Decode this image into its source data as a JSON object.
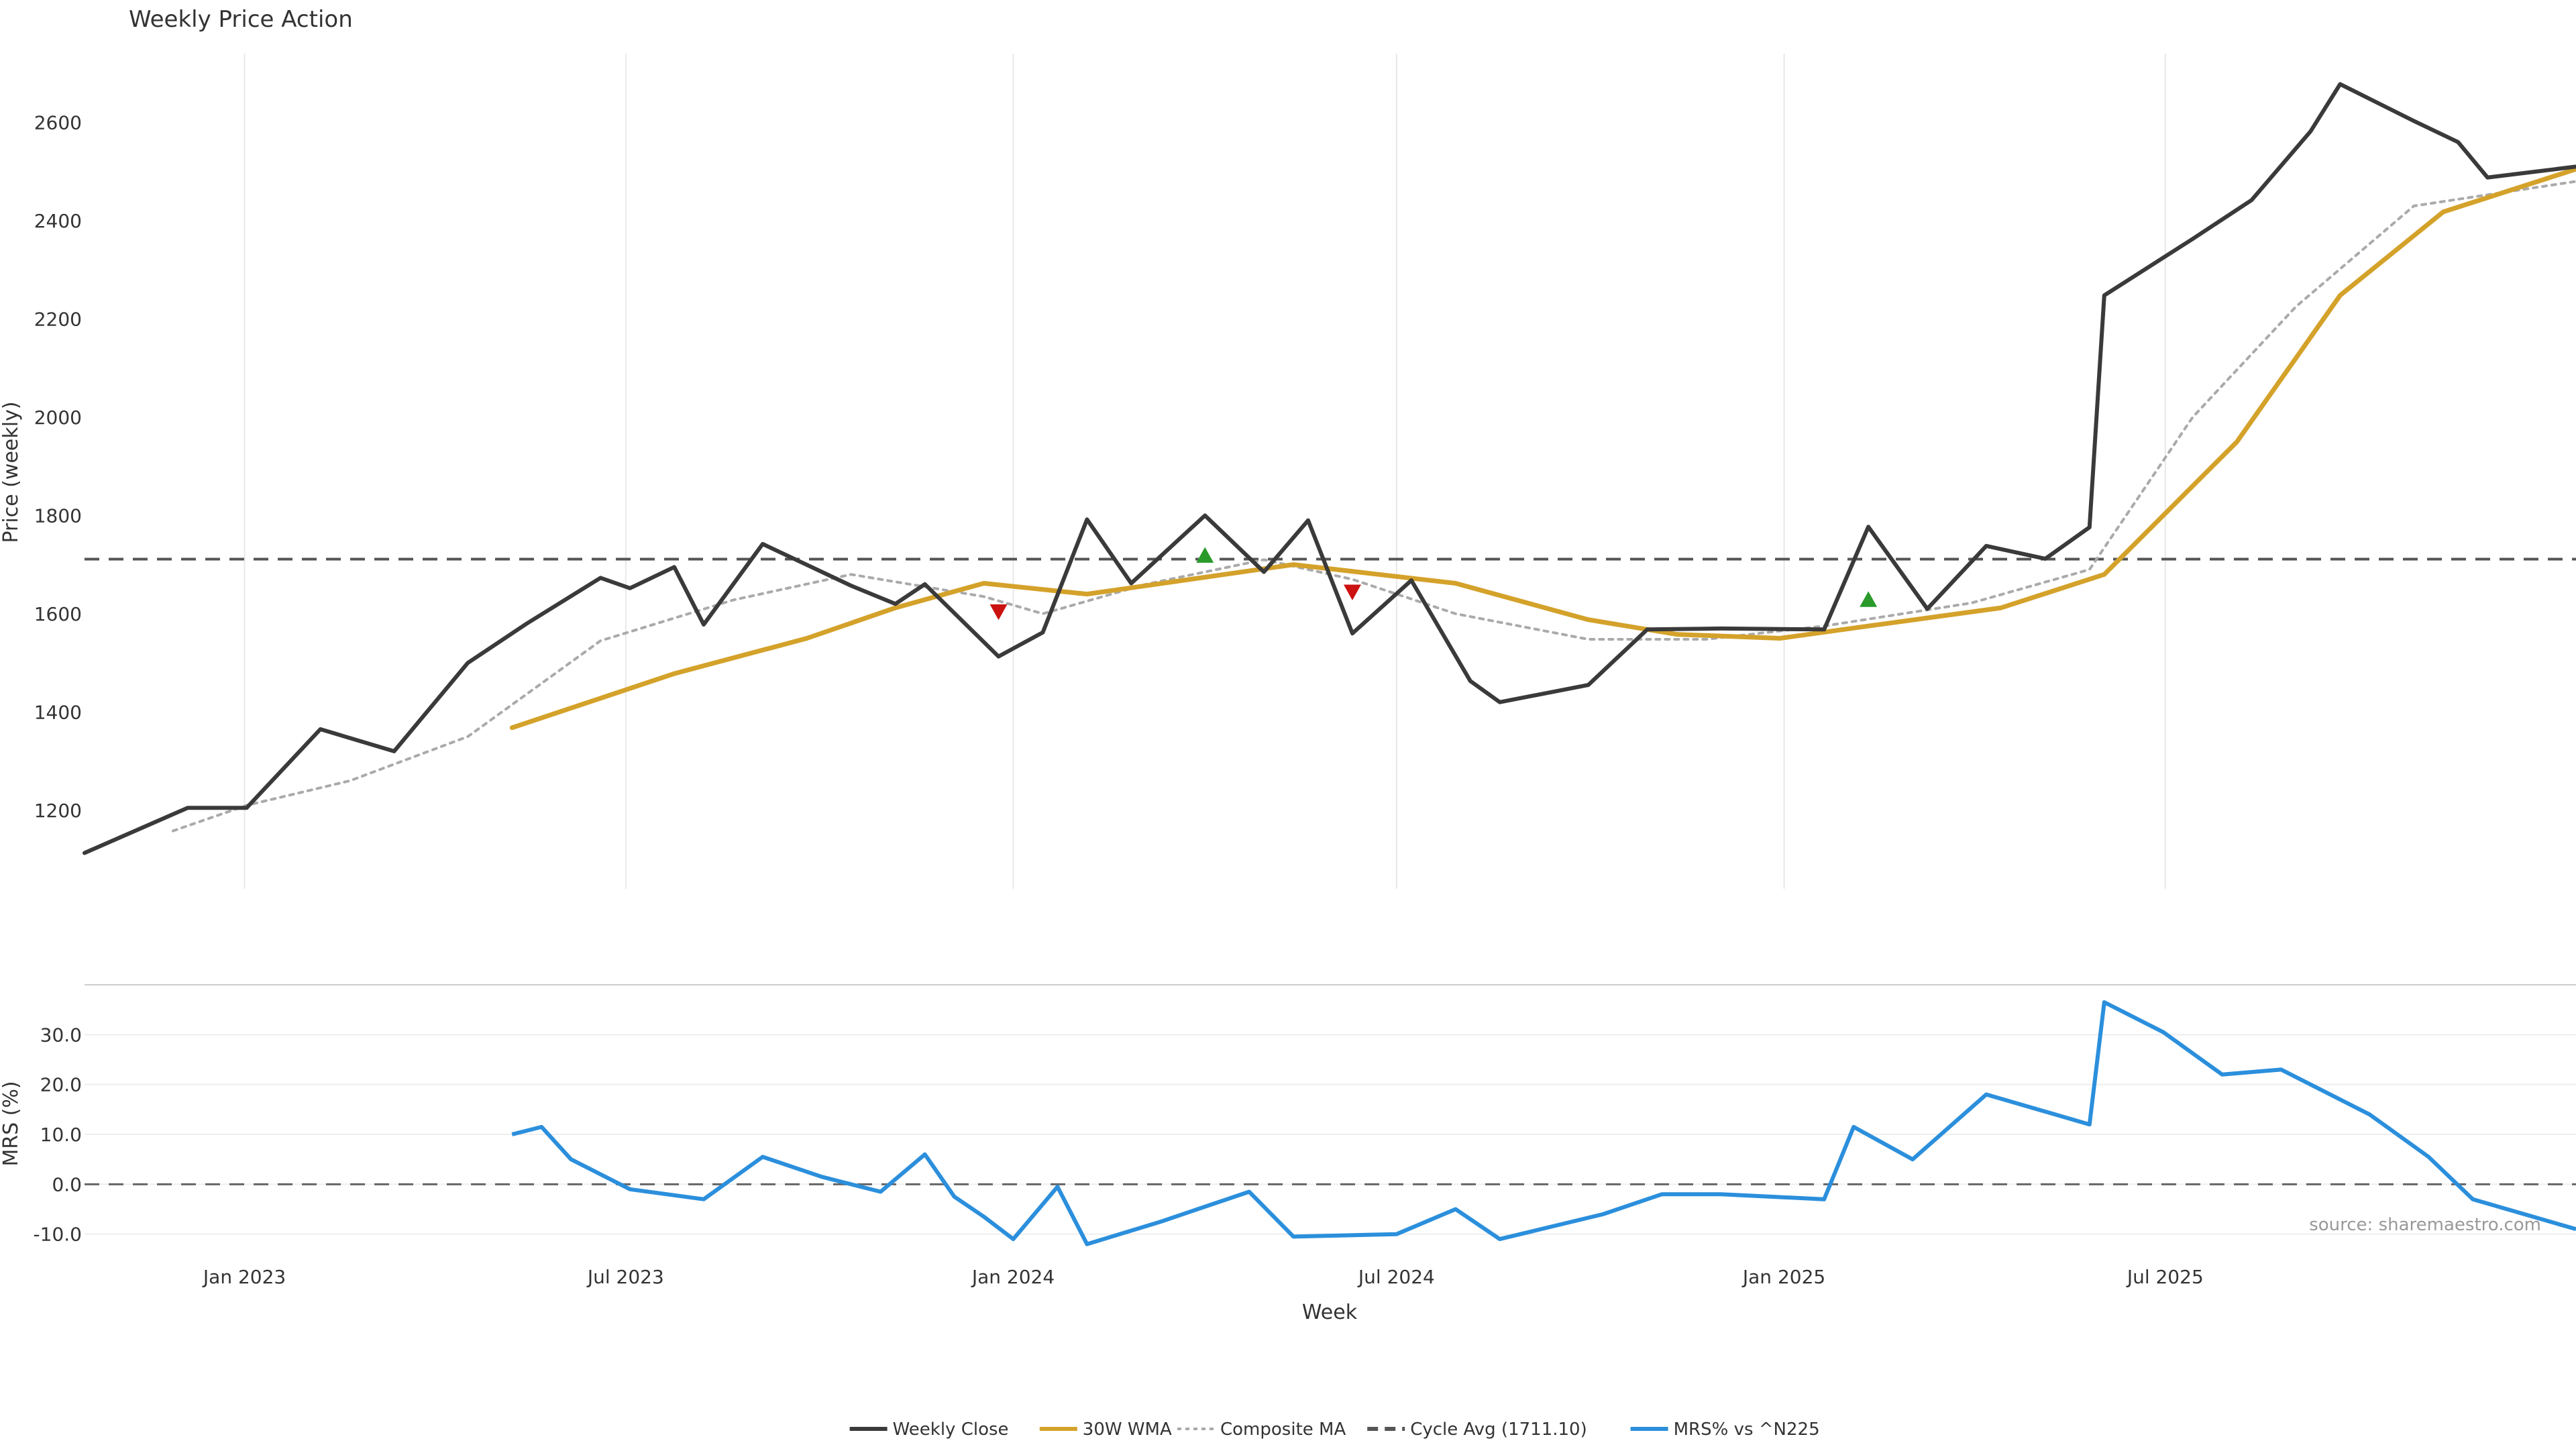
{
  "chart_data": {
    "type": "line",
    "title": "Weekly Price Action",
    "x_axis_label": "Week",
    "x_tick_labels": [
      "Jan 2023",
      "Jul 2023",
      "Jan 2024",
      "Jul 2024",
      "Jan 2025",
      "Jul 2025"
    ],
    "source_text": "source: sharemaestro.com",
    "price_panel": {
      "ylabel": "Price (weekly)",
      "ylim": [
        1040,
        2740
      ],
      "y_ticks": [
        1200,
        1400,
        1600,
        1800,
        2000,
        2200,
        2400,
        2600
      ],
      "cycle_avg": 1711.1,
      "series": [
        {
          "name": "Weekly Close",
          "color": "#3a3a3a",
          "points": [
            [
              "2022-10-17",
              1113
            ],
            [
              "2022-12-05",
              1205
            ],
            [
              "2023-01-02",
              1205
            ],
            [
              "2023-02-06",
              1365
            ],
            [
              "2023-03-13",
              1320
            ],
            [
              "2023-04-17",
              1500
            ],
            [
              "2023-05-15",
              1580
            ],
            [
              "2023-06-19",
              1673
            ],
            [
              "2023-07-03",
              1652
            ],
            [
              "2023-07-24",
              1695
            ],
            [
              "2023-08-07",
              1578
            ],
            [
              "2023-09-04",
              1742
            ],
            [
              "2023-10-16",
              1657
            ],
            [
              "2023-11-06",
              1620
            ],
            [
              "2023-11-20",
              1660
            ],
            [
              "2023-12-25",
              1513
            ],
            [
              "2024-01-15",
              1562
            ],
            [
              "2024-02-05",
              1792
            ],
            [
              "2024-02-26",
              1662
            ],
            [
              "2024-04-01",
              1800
            ],
            [
              "2024-04-29",
              1685
            ],
            [
              "2024-05-20",
              1790
            ],
            [
              "2024-06-10",
              1560
            ],
            [
              "2024-07-08",
              1668
            ],
            [
              "2024-08-05",
              1463
            ],
            [
              "2024-08-19",
              1420
            ],
            [
              "2024-09-30",
              1455
            ],
            [
              "2024-10-28",
              1568
            ],
            [
              "2024-12-02",
              1570
            ],
            [
              "2025-01-20",
              1568
            ],
            [
              "2025-02-10",
              1777
            ],
            [
              "2025-03-10",
              1610
            ],
            [
              "2025-04-07",
              1738
            ],
            [
              "2025-05-05",
              1712
            ],
            [
              "2025-05-26",
              1776
            ],
            [
              "2025-06-02",
              2248
            ],
            [
              "2025-07-14",
              2363
            ],
            [
              "2025-08-11",
              2442
            ],
            [
              "2025-09-08",
              2582
            ],
            [
              "2025-09-22",
              2678
            ],
            [
              "2025-10-27",
              2603
            ],
            [
              "2025-11-17",
              2560
            ],
            [
              "2025-12-01",
              2488
            ],
            [
              "2026-01-12",
              2510
            ]
          ]
        },
        {
          "name": "30W WMA",
          "color": "#d4a22a",
          "points": [
            [
              "2023-05-08",
              1368
            ],
            [
              "2023-07-24",
              1478
            ],
            [
              "2023-09-25",
              1550
            ],
            [
              "2023-11-06",
              1612
            ],
            [
              "2023-12-18",
              1662
            ],
            [
              "2024-02-05",
              1640
            ],
            [
              "2024-05-13",
              1700
            ],
            [
              "2024-07-29",
              1662
            ],
            [
              "2024-09-30",
              1588
            ],
            [
              "2024-11-11",
              1558
            ],
            [
              "2024-12-30",
              1550
            ],
            [
              "2025-02-10",
              1575
            ],
            [
              "2025-04-14",
              1612
            ],
            [
              "2025-06-02",
              1680
            ],
            [
              "2025-08-04",
              1950
            ],
            [
              "2025-09-22",
              2248
            ],
            [
              "2025-11-10",
              2418
            ],
            [
              "2026-01-12",
              2505
            ]
          ]
        },
        {
          "name": "Composite MA",
          "color": "#aaaaaa",
          "points": [
            [
              "2022-11-28",
              1158
            ],
            [
              "2023-01-02",
              1210
            ],
            [
              "2023-02-20",
              1260
            ],
            [
              "2023-04-17",
              1350
            ],
            [
              "2023-06-19",
              1545
            ],
            [
              "2023-08-21",
              1628
            ],
            [
              "2023-10-16",
              1680
            ],
            [
              "2023-12-18",
              1635
            ],
            [
              "2024-01-15",
              1600
            ],
            [
              "2024-03-04",
              1660
            ],
            [
              "2024-04-29",
              1710
            ],
            [
              "2024-06-10",
              1670
            ],
            [
              "2024-07-29",
              1600
            ],
            [
              "2024-09-30",
              1548
            ],
            [
              "2024-11-25",
              1548
            ],
            [
              "2025-01-20",
              1575
            ],
            [
              "2025-03-31",
              1622
            ],
            [
              "2025-05-26",
              1690
            ],
            [
              "2025-07-14",
              2000
            ],
            [
              "2025-09-01",
              2225
            ],
            [
              "2025-10-27",
              2430
            ],
            [
              "2026-01-12",
              2480
            ]
          ]
        }
      ],
      "signals": [
        {
          "type": "sell",
          "color": "#cc1111",
          "date": "2023-12-25",
          "price": 1605
        },
        {
          "type": "buy",
          "color": "#2a9a2a",
          "date": "2024-04-01",
          "price": 1718
        },
        {
          "type": "sell",
          "color": "#cc1111",
          "date": "2024-06-10",
          "price": 1645
        },
        {
          "type": "buy",
          "color": "#2a9a2a",
          "date": "2025-02-10",
          "price": 1628
        }
      ],
      "legend_label_cycle_avg": "Cycle Avg (1711.10)"
    },
    "mrs_panel": {
      "ylabel": "MRS (%)",
      "ylim": [
        -13,
        40
      ],
      "y_ticks": [
        "-10.0",
        "0.0",
        "10.0",
        "20.0",
        "30.0"
      ],
      "y_tick_values": [
        -10,
        0,
        10,
        20,
        30
      ],
      "series": {
        "name": "MRS% vs ^N225",
        "color": "#2b8fdc",
        "points": [
          [
            "2023-05-08",
            10
          ],
          [
            "2023-05-22",
            11.5
          ],
          [
            "2023-06-05",
            5
          ],
          [
            "2023-07-03",
            -1
          ],
          [
            "2023-08-07",
            -3
          ],
          [
            "2023-09-04",
            5.5
          ],
          [
            "2023-10-02",
            1.5
          ],
          [
            "2023-10-30",
            -1.5
          ],
          [
            "2023-11-20",
            6
          ],
          [
            "2023-12-04",
            -2.5
          ],
          [
            "2023-12-18",
            -6.5
          ],
          [
            "2024-01-01",
            -11
          ],
          [
            "2024-01-22",
            -0.5
          ],
          [
            "2024-02-05",
            -12
          ],
          [
            "2024-03-11",
            -7.5
          ],
          [
            "2024-04-22",
            -1.5
          ],
          [
            "2024-05-13",
            -10.5
          ],
          [
            "2024-07-01",
            -10
          ],
          [
            "2024-07-29",
            -5
          ],
          [
            "2024-08-19",
            -11
          ],
          [
            "2024-10-07",
            -6
          ],
          [
            "2024-11-04",
            -2
          ],
          [
            "2024-12-02",
            -2
          ],
          [
            "2025-01-20",
            -3
          ],
          [
            "2025-02-03",
            11.5
          ],
          [
            "2025-03-03",
            5
          ],
          [
            "2025-04-07",
            18
          ],
          [
            "2025-05-26",
            12
          ],
          [
            "2025-06-02",
            36.5
          ],
          [
            "2025-06-30",
            30.5
          ],
          [
            "2025-07-28",
            22
          ],
          [
            "2025-08-25",
            23
          ],
          [
            "2025-10-06",
            14
          ],
          [
            "2025-11-03",
            5.5
          ],
          [
            "2025-11-24",
            -3
          ],
          [
            "2026-01-12",
            -9
          ]
        ]
      }
    },
    "legend": {
      "placement": "bottom-center",
      "items": [
        {
          "label": "Weekly Close",
          "color": "#3a3a3a",
          "style": "solid"
        },
        {
          "label": "30W WMA",
          "color": "#d4a22a",
          "style": "solid"
        },
        {
          "label": "Composite MA",
          "color": "#aaaaaa",
          "style": "dotted"
        },
        {
          "label": "Cycle Avg (1711.10)",
          "color": "#555555",
          "style": "dashed"
        },
        {
          "label": "MRS% vs ^N225",
          "color": "#2b8fdc",
          "style": "solid"
        }
      ]
    }
  }
}
